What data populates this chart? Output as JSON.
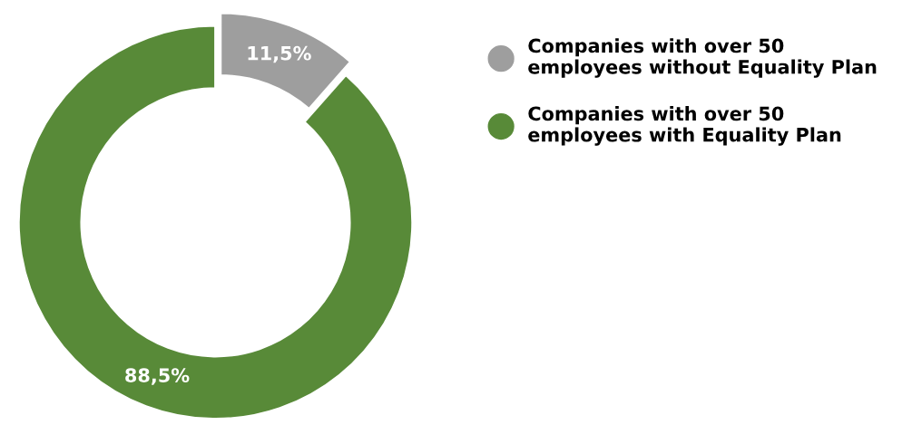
{
  "chart_data": {
    "type": "donut",
    "categories": [
      "Companies with over 50\nemployees without Equality Plan",
      "Companies with over 50\nemployees with Equality Plan"
    ],
    "values": [
      11.5,
      88.5
    ],
    "value_labels": [
      "11,5%",
      "88,5%"
    ],
    "colors": [
      "#9e9e9e",
      "#588a38"
    ],
    "legend": "top right"
  }
}
